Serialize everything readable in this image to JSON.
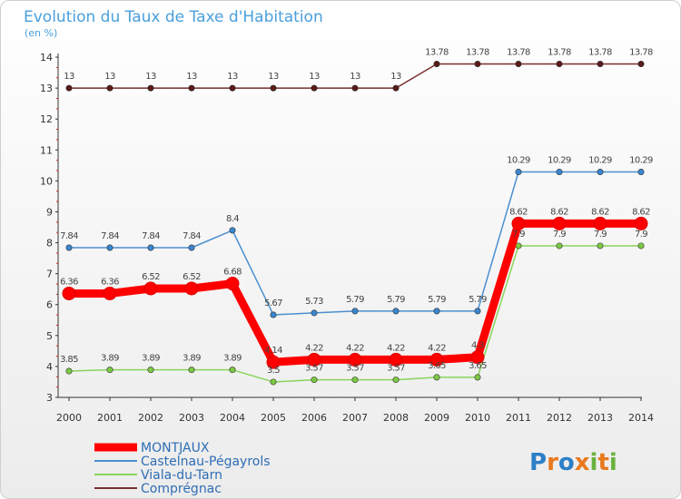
{
  "chart_data": {
    "type": "line",
    "title": "Evolution du Taux de Taxe d'Habitation",
    "subtitle": "(en %)",
    "x": [
      "2000",
      "2001",
      "2002",
      "2003",
      "2004",
      "2005",
      "2006",
      "2007",
      "2008",
      "2009",
      "2010",
      "2011",
      "2012",
      "2013",
      "2014"
    ],
    "ylim": [
      3,
      14
    ],
    "yticks": [
      3,
      4,
      5,
      6,
      7,
      8,
      9,
      10,
      11,
      12,
      13,
      14
    ],
    "grid": false,
    "legend_position": "bottom-left",
    "series": [
      {
        "name": "MONTJAUX",
        "color": "#ff0000",
        "values": [
          6.36,
          6.36,
          6.52,
          6.52,
          6.68,
          4.14,
          4.22,
          4.22,
          4.22,
          4.22,
          4.3,
          8.62,
          8.62,
          8.62,
          8.62
        ],
        "labels": [
          "6.36",
          "6.36",
          "6.52",
          "6.52",
          "6.68",
          "4.14",
          "4.22",
          "4.22",
          "4.22",
          "4.22",
          "4.3",
          "8.62",
          "8.62",
          "8.62",
          "8.62"
        ]
      },
      {
        "name": "Castelnau-Pégayrols",
        "color": "#4a90d0",
        "values": [
          7.84,
          7.84,
          7.84,
          7.84,
          8.4,
          5.67,
          5.73,
          5.79,
          5.79,
          5.79,
          5.79,
          10.29,
          10.29,
          10.29,
          10.29
        ],
        "labels": [
          "7.84",
          "7.84",
          "7.84",
          "7.84",
          "8.4",
          "5.67",
          "5.73",
          "5.79",
          "5.79",
          "5.79",
          "5.79",
          "10.29",
          "10.29",
          "10.29",
          "10.29"
        ]
      },
      {
        "name": "Viala-du-Tarn",
        "color": "#88d45a",
        "values": [
          3.85,
          3.89,
          3.89,
          3.89,
          3.89,
          3.5,
          3.57,
          3.57,
          3.57,
          3.65,
          3.65,
          7.9,
          7.9,
          7.9,
          7.9
        ],
        "labels": [
          "3.85",
          "3.89",
          "3.89",
          "3.89",
          "3.89",
          "3.5",
          "3.57",
          "3.57",
          "3.57",
          "3.65",
          "3.65",
          "7.9",
          "7.9",
          "7.9",
          "7.9"
        ]
      },
      {
        "name": "Comprégnac",
        "color": "#7a2e2e",
        "values": [
          13,
          13,
          13,
          13,
          13,
          13,
          13,
          13,
          13,
          13.78,
          13.78,
          13.78,
          13.78,
          13.78,
          13.78
        ],
        "labels": [
          "13",
          "13",
          "13",
          "13",
          "13",
          "13",
          "13",
          "13",
          "13",
          "13.78",
          "13.78",
          "13.78",
          "13.78",
          "13.78",
          "13.78"
        ]
      }
    ]
  },
  "logo": {
    "letters": [
      "P",
      "r",
      "o",
      "x",
      "i",
      "t",
      "i"
    ],
    "colors": [
      "#2c7fc6",
      "#e8791e",
      "#2c7fc6",
      "#e8791e",
      "#6ab23e",
      "#e8791e",
      "#6ab23e"
    ]
  }
}
